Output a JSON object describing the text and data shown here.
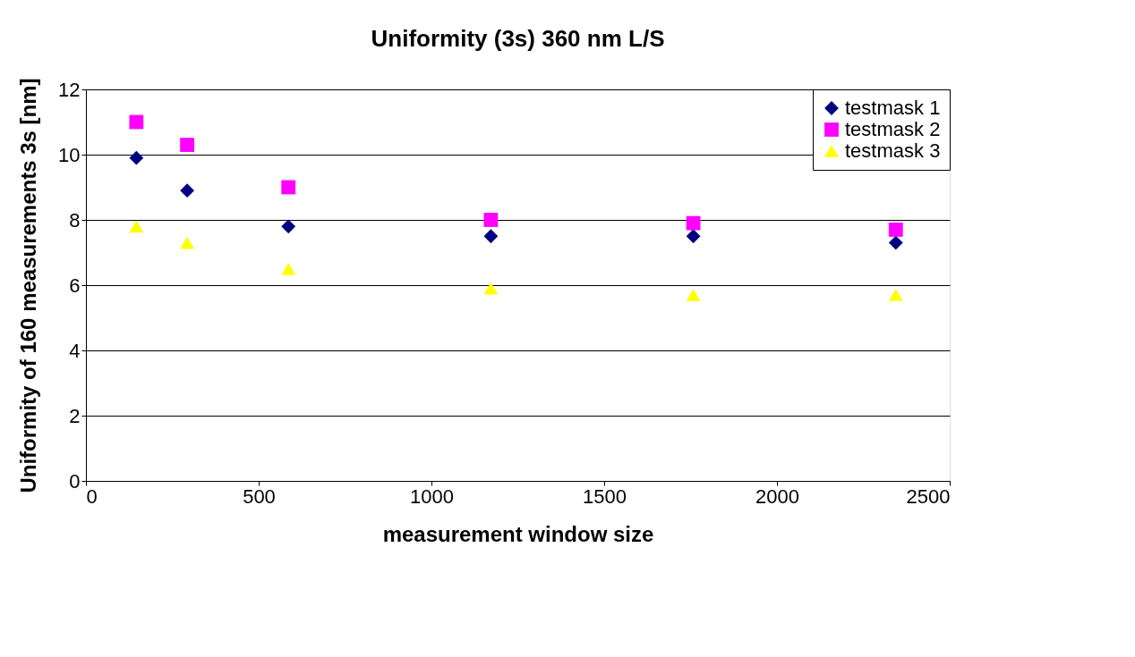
{
  "chart_data": {
    "type": "scatter",
    "title": "Uniformity (3s) 360 nm L/S",
    "xlabel": "measurement window size",
    "ylabel": "Uniformity of 160 measurements 3s [nm]",
    "x": [
      146,
      293,
      586,
      1172,
      1758,
      2344
    ],
    "series": [
      {
        "name": "testmask 1",
        "color": "#000080",
        "marker": "diamond",
        "values": [
          9.9,
          8.9,
          7.8,
          7.5,
          7.5,
          7.3
        ]
      },
      {
        "name": "testmask 2",
        "color": "#ff00ff",
        "marker": "square",
        "values": [
          11.0,
          10.3,
          9.0,
          8.0,
          7.9,
          7.7
        ]
      },
      {
        "name": "testmask 3",
        "color": "#ffff00",
        "marker": "triangle",
        "values": [
          7.8,
          7.3,
          6.5,
          5.9,
          5.7,
          5.7
        ]
      }
    ],
    "xlim": [
      0,
      2500
    ],
    "xticks": [
      0,
      500,
      1000,
      1500,
      2000,
      2500
    ],
    "ylim": [
      0,
      12
    ],
    "yticks": [
      0,
      2,
      4,
      6,
      8,
      10,
      12
    ],
    "grid": "y",
    "legend": "top right"
  }
}
